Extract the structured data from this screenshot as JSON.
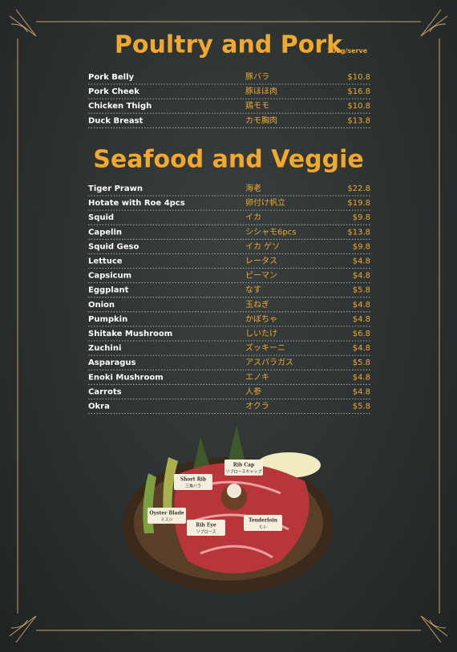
{
  "sections": [
    {
      "title": "Poultry and Pork",
      "note": "100g/serve",
      "items": [
        {
          "name": "Pork Belly",
          "jp": "豚バラ",
          "price": "$10.8"
        },
        {
          "name": "Pork Cheek",
          "jp": "豚ほほ肉",
          "price": "$16.8"
        },
        {
          "name": "Chicken Thigh",
          "jp": "鶏モモ",
          "price": "$10.8"
        },
        {
          "name": "Duck Breast",
          "jp": "カモ胸肉",
          "price": "$13.8"
        }
      ]
    },
    {
      "title": "Seafood and Veggie",
      "items": [
        {
          "name": "Tiger Prawn",
          "jp": "海老",
          "price": "$22.8"
        },
        {
          "name": "Hotate with Roe 4pcs",
          "jp": "卵付け帆立",
          "price": "$19.8"
        },
        {
          "name": "Squid",
          "jp": "イカ",
          "price": "$9.8"
        },
        {
          "name": "Capelin",
          "jp": "シシャモ6pcs",
          "price": "$13.8"
        },
        {
          "name": "Squid Geso",
          "jp": "イカ ゲソ",
          "price": "$9.8"
        },
        {
          "name": "Lettuce",
          "jp": "レータス",
          "price": "$4.8"
        },
        {
          "name": "Capsicum",
          "jp": "ピーマン",
          "price": "$4.8"
        },
        {
          "name": "Eggplant",
          "jp": "なす",
          "price": "$5.8"
        },
        {
          "name": "Onion",
          "jp": "玉ねぎ",
          "price": "$4.8"
        },
        {
          "name": "Pumpkin",
          "jp": "かぼちゃ",
          "price": "$4.8"
        },
        {
          "name": "Shitake Mushroom",
          "jp": "しいたけ",
          "price": "$6.8"
        },
        {
          "name": "Zuchini",
          "jp": "ズッキーニ",
          "price": "$4.8"
        },
        {
          "name": "Asparagus",
          "jp": "アスパラガス",
          "price": "$5.8"
        },
        {
          "name": "Enoki Mushroom",
          "jp": "エノキ",
          "price": "$4.8"
        },
        {
          "name": "Carrots",
          "jp": "人参",
          "price": "$4.8"
        },
        {
          "name": "Okra",
          "jp": "オクラ",
          "price": "$5.8"
        }
      ]
    }
  ],
  "image_labels": [
    {
      "en": "Short Rib",
      "jp": "三角バラ"
    },
    {
      "en": "Rib Cap",
      "jp": "リブロースキャップ"
    },
    {
      "en": "Oyster Blade",
      "jp": "ミスジ"
    },
    {
      "en": "Rib Eye",
      "jp": "リブロース"
    },
    {
      "en": "Tenderloin",
      "jp": "ヒレ"
    }
  ]
}
